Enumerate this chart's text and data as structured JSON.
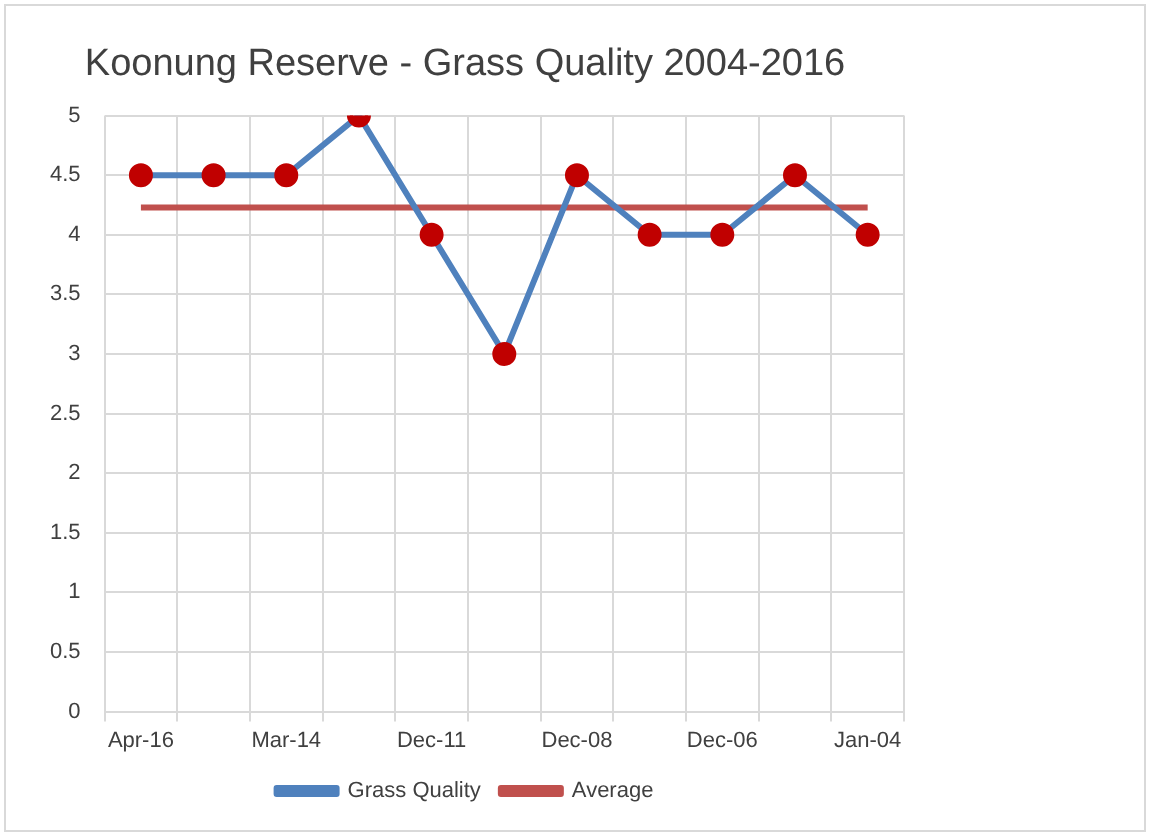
{
  "chart_data": {
    "type": "line",
    "title": "Koonung Reserve - Grass Quality 2004-2016",
    "categories": [
      "Apr-16",
      null,
      "Mar-14",
      null,
      "Dec-11",
      null,
      "Dec-08",
      null,
      "Dec-06",
      null,
      "Jan-04"
    ],
    "series": [
      {
        "name": "Grass Quality",
        "color": "#4f81bd",
        "colors": [
          "#c00000",
          "#c00000",
          "#c00000",
          "#c00000",
          "#c00000",
          "#c00000",
          "#c00000",
          "#c00000",
          "#c00000",
          "#c00000",
          "#c00000"
        ],
        "marker": "circle",
        "values": [
          4.5,
          4.5,
          4.5,
          5,
          4,
          3,
          4.5,
          4,
          4,
          4.5,
          4
        ]
      },
      {
        "name": "Average",
        "color": "#c0504d",
        "marker": "none",
        "values": [
          4.23,
          4.23,
          4.23,
          4.23,
          4.23,
          4.23,
          4.23,
          4.23,
          4.23,
          4.23,
          4.23
        ]
      }
    ],
    "ylim": [
      0,
      5
    ],
    "yticks": [
      0,
      0.5,
      1,
      1.5,
      2,
      2.5,
      3,
      3.5,
      4,
      4.5,
      5
    ],
    "grid": true,
    "legend": "bottom"
  }
}
